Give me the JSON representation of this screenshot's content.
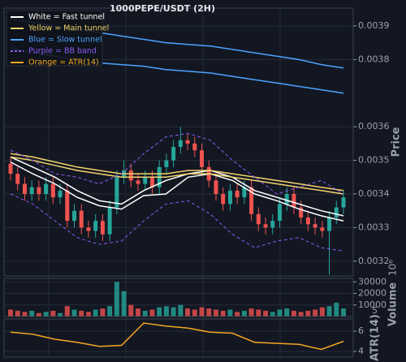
{
  "chart_data": {
    "type": "candlestick",
    "title": "1000PEPE/USDT (2H)",
    "price_label": "Price",
    "volume_label": "Volume",
    "volume_offset": "10⁶",
    "volume_marker": "5",
    "atr_label": "ATR(14)",
    "ylim": [
      0.003156,
      0.003953
    ],
    "yticks": [
      0.0032,
      0.0033,
      0.0034,
      0.0035,
      0.0036,
      0.0038,
      0.0039
    ],
    "volume_ylim": [
      0,
      33000
    ],
    "volume_yticks": [
      10000,
      20000,
      30000
    ],
    "atr_ylim": [
      3.44,
      7.2
    ],
    "atr_yticks": [
      4,
      6
    ],
    "up_color": "#26a69a",
    "down_color": "#ef5350",
    "grid": true,
    "candles": {
      "open": [
        0.00349,
        0.00346,
        0.00343,
        0.0034,
        0.00342,
        0.0034,
        0.00343,
        0.00339,
        0.00341,
        0.00332,
        0.00335,
        0.0033,
        0.00329,
        0.00332,
        0.00328,
        0.00336,
        0.00345,
        0.00347,
        0.00344,
        0.00343,
        0.00345,
        0.00342,
        0.00348,
        0.0035,
        0.00354,
        0.00356,
        0.00355,
        0.00353,
        0.00348,
        0.00344,
        0.0034,
        0.00337,
        0.00341,
        0.00339,
        0.00342,
        0.00334,
        0.00331,
        0.0033,
        0.00332,
        0.00337,
        0.0034,
        0.00336,
        0.00333,
        0.00331,
        0.0033,
        0.00329,
        0.00333,
        0.00336
      ],
      "high": [
        0.00351,
        0.00348,
        0.00345,
        0.00344,
        0.00344,
        0.00345,
        0.00345,
        0.00343,
        0.00343,
        0.00337,
        0.00337,
        0.00332,
        0.00334,
        0.00334,
        0.00338,
        0.00347,
        0.0035,
        0.00349,
        0.00346,
        0.00347,
        0.00347,
        0.0035,
        0.00352,
        0.00356,
        0.0036,
        0.00358,
        0.00357,
        0.00355,
        0.0035,
        0.00346,
        0.00342,
        0.00343,
        0.00343,
        0.00344,
        0.00344,
        0.00336,
        0.00333,
        0.00334,
        0.00339,
        0.00342,
        0.00342,
        0.00338,
        0.00335,
        0.00333,
        0.00332,
        0.00335,
        0.00338,
        0.00341
      ],
      "low": [
        0.00344,
        0.00341,
        0.00338,
        0.00338,
        0.00338,
        0.00338,
        0.00337,
        0.00337,
        0.0033,
        0.0033,
        0.00328,
        0.00327,
        0.00327,
        0.00326,
        0.00326,
        0.00334,
        0.00343,
        0.00342,
        0.00341,
        0.00341,
        0.0034,
        0.0034,
        0.00346,
        0.00348,
        0.00352,
        0.00353,
        0.00351,
        0.00346,
        0.00342,
        0.00338,
        0.00335,
        0.00335,
        0.00337,
        0.00337,
        0.00332,
        0.00329,
        0.00328,
        0.00328,
        0.0033,
        0.00335,
        0.00334,
        0.00331,
        0.00329,
        0.00328,
        0.00327,
        0.00316,
        0.00331,
        0.00334
      ],
      "close": [
        0.00346,
        0.00343,
        0.0034,
        0.00342,
        0.0034,
        0.00343,
        0.00339,
        0.00341,
        0.00332,
        0.00335,
        0.0033,
        0.00329,
        0.00332,
        0.00328,
        0.00336,
        0.00345,
        0.00347,
        0.00344,
        0.00343,
        0.00345,
        0.00342,
        0.00348,
        0.0035,
        0.00354,
        0.00356,
        0.00355,
        0.00353,
        0.00348,
        0.00344,
        0.0034,
        0.00337,
        0.00341,
        0.00339,
        0.00342,
        0.00334,
        0.00331,
        0.0033,
        0.00332,
        0.00337,
        0.0034,
        0.00336,
        0.00333,
        0.00331,
        0.0033,
        0.00329,
        0.00333,
        0.00336,
        0.00339
      ]
    },
    "volume": [
      6000,
      5000,
      4000,
      5000,
      3000,
      4000,
      5000,
      3000,
      9000,
      6000,
      5000,
      4000,
      6000,
      7000,
      9000,
      30000,
      22000,
      10000,
      7000,
      5000,
      6000,
      8000,
      9000,
      8000,
      10000,
      7000,
      6000,
      8000,
      7000,
      6000,
      5000,
      6000,
      4000,
      5000,
      7000,
      6000,
      5000,
      4000,
      6000,
      7000,
      5000,
      4000,
      5000,
      6000,
      8000,
      9000,
      12000,
      7000
    ],
    "indicators": [
      {
        "name": "White = Fast tunnel",
        "color": "#ffffff",
        "dashed": false,
        "panel": "price",
        "lines": [
          [
            0.00351,
            0.00348,
            0.00345,
            0.00341,
            0.00338,
            0.00337,
            0.00341,
            0.00344,
            0.00346,
            0.00347,
            0.00345,
            0.00341,
            0.00339,
            0.00337,
            0.00335,
            0.003335
          ],
          [
            0.003495,
            0.00346,
            0.00343,
            0.00339,
            0.003365,
            0.003355,
            0.003395,
            0.0034,
            0.00345,
            0.00346,
            0.00344,
            0.0034,
            0.00338,
            0.003355,
            0.003335,
            0.00332
          ]
        ]
      },
      {
        "name": "Yellow = Main tunnel",
        "color": "#f2d36b",
        "dashed": false,
        "panel": "price",
        "lines": [
          [
            0.00352,
            0.00351,
            0.003495,
            0.00348,
            0.00347,
            0.00346,
            0.00346,
            0.00346,
            0.00347,
            0.00347,
            0.00346,
            0.00345,
            0.00344,
            0.00343,
            0.00342,
            0.00341
          ],
          [
            0.00351,
            0.0035,
            0.003485,
            0.00347,
            0.00346,
            0.00345,
            0.00345,
            0.00345,
            0.00346,
            0.00346,
            0.00345,
            0.00344,
            0.00343,
            0.00342,
            0.00341,
            0.0034
          ]
        ]
      },
      {
        "name": "Blue = Slow tunnel",
        "color": "#4da3ff",
        "dashed": false,
        "panel": "price",
        "lines": [
          [
            0.00392,
            0.00391,
            0.0039,
            0.00389,
            0.00388,
            0.00387,
            0.00386,
            0.00385,
            0.003845,
            0.00384,
            0.00383,
            0.00382,
            0.00381,
            0.0038,
            0.003785,
            0.003775
          ],
          [
            0.003835,
            0.00382,
            0.00381,
            0.0038,
            0.00379,
            0.003785,
            0.00378,
            0.00377,
            0.003765,
            0.00376,
            0.00375,
            0.00374,
            0.00373,
            0.00372,
            0.00371,
            0.0037
          ]
        ]
      },
      {
        "name": "Purple = BB band",
        "color": "#8a5cf6",
        "dashed": true,
        "panel": "price",
        "lines": [
          [
            0.00353,
            0.0035,
            0.00346,
            0.00345,
            0.00343,
            0.00346,
            0.00352,
            0.00357,
            0.00358,
            0.00356,
            0.0035,
            0.00345,
            0.0034,
            0.00342,
            0.00344,
            0.0034
          ],
          [
            0.0034,
            0.00337,
            0.00332,
            0.00327,
            0.00325,
            0.00326,
            0.00332,
            0.00337,
            0.00338,
            0.00334,
            0.00328,
            0.00324,
            0.00326,
            0.00327,
            0.00324,
            0.00323
          ]
        ]
      },
      {
        "name": "Orange = ATR(14)",
        "color": "#f5a623",
        "dashed": false,
        "panel": "atr",
        "lines": [
          [
            5.9,
            5.7,
            5.2,
            4.9,
            4.5,
            4.6,
            6.8,
            6.5,
            6.3,
            5.9,
            5.8,
            4.9,
            4.8,
            4.7,
            4.2,
            5.0
          ]
        ]
      }
    ]
  }
}
